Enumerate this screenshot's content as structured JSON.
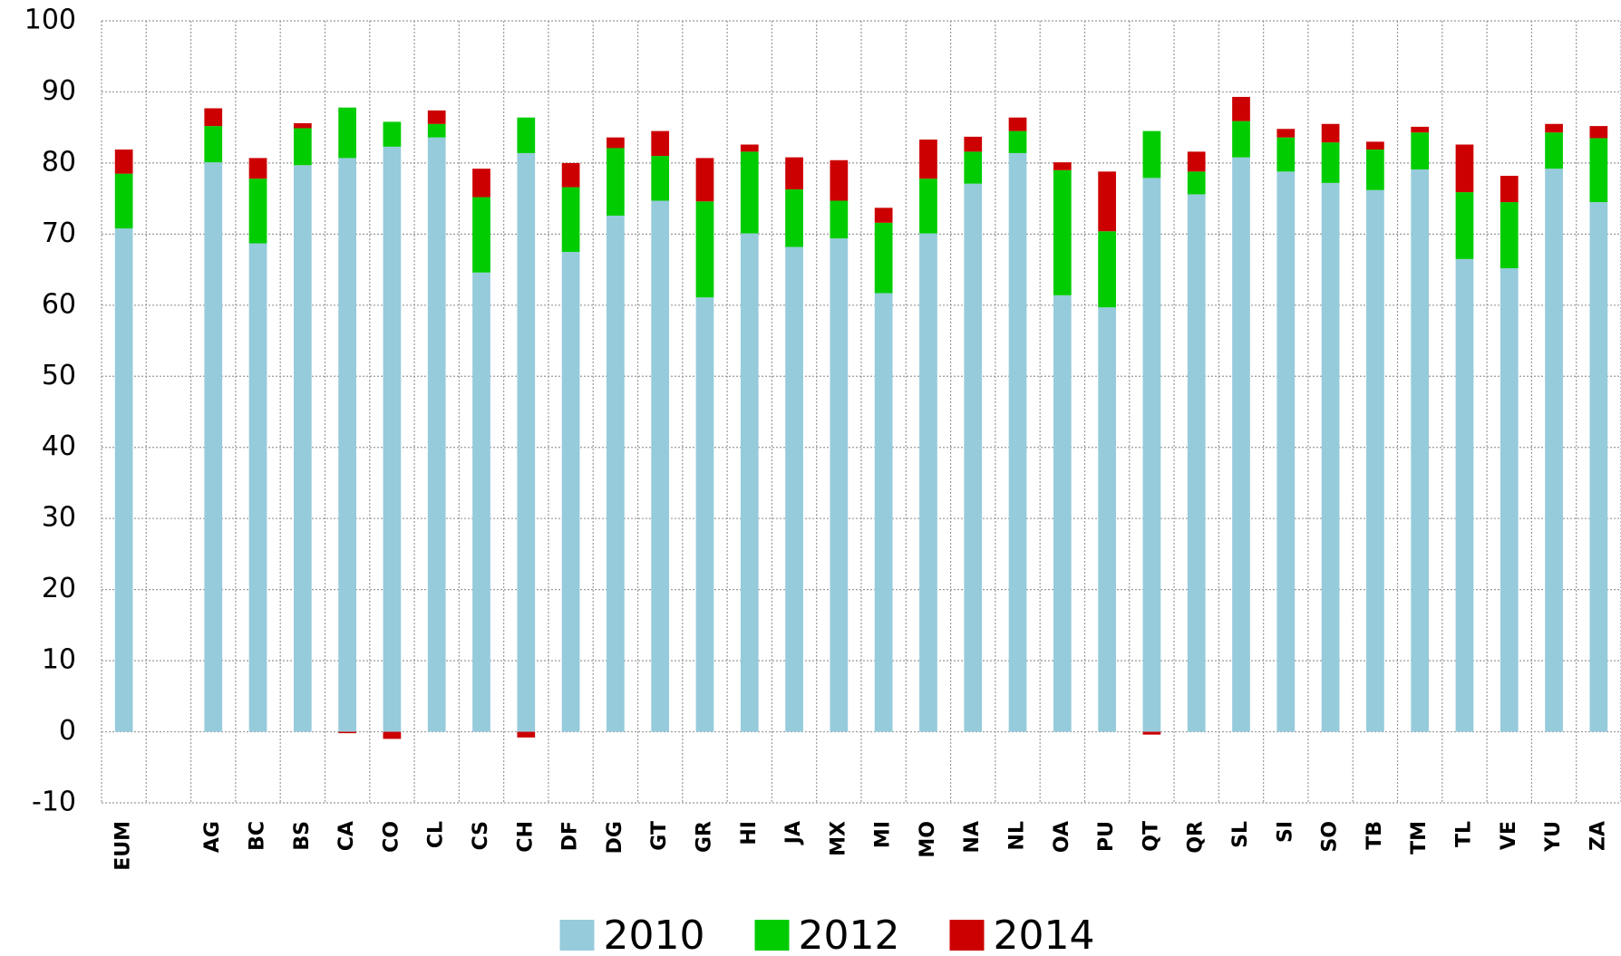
{
  "chart_data": {
    "type": "stacked_bar",
    "categories": [
      "EUM",
      null,
      "AG",
      "BC",
      "BS",
      "CA",
      "CO",
      "CL",
      "CS",
      "CH",
      "DF",
      "DG",
      "GT",
      "GR",
      "HI",
      "JA",
      "MX",
      "MI",
      "MO",
      "NA",
      "NL",
      "OA",
      "PU",
      "QT",
      "QR",
      "SL",
      "SI",
      "SO",
      "TB",
      "TM",
      "TL",
      "VE",
      "YU",
      "ZA"
    ],
    "series": [
      {
        "name": "2010",
        "color": "#96cbdb",
        "values": [
          70.8,
          null,
          80.1,
          68.7,
          79.7,
          80.7,
          82.3,
          83.6,
          64.6,
          81.4,
          67.5,
          72.6,
          74.7,
          61.1,
          70.1,
          68.2,
          69.4,
          61.7,
          70.1,
          77.1,
          81.4,
          61.4,
          59.7,
          77.9,
          75.6,
          80.8,
          78.8,
          77.2,
          76.2,
          79.1,
          66.5,
          65.2,
          79.2,
          74.5
        ]
      },
      {
        "name": "2012",
        "color": "#00cc00",
        "values": [
          7.7,
          null,
          5.1,
          9.1,
          5.2,
          7.1,
          3.5,
          1.9,
          10.6,
          5.0,
          9.1,
          9.5,
          6.3,
          13.5,
          11.5,
          8.1,
          5.3,
          9.9,
          7.7,
          4.5,
          3.1,
          17.6,
          10.7,
          6.6,
          3.2,
          5.1,
          4.8,
          5.7,
          5.7,
          5.2,
          9.4,
          9.3,
          5.1,
          9.0
        ]
      },
      {
        "name": "2014",
        "color": "#cc0000",
        "values": [
          3.4,
          null,
          2.5,
          2.9,
          0.7,
          -0.2,
          -1.0,
          1.9,
          4.0,
          -0.8,
          3.4,
          1.5,
          3.5,
          6.1,
          1.0,
          4.5,
          5.7,
          2.1,
          5.5,
          2.1,
          1.9,
          1.1,
          8.4,
          -0.4,
          2.8,
          3.4,
          1.2,
          2.6,
          1.1,
          0.8,
          6.7,
          3.7,
          1.2,
          1.7
        ]
      }
    ],
    "ylim": [
      -10,
      100
    ],
    "yticks": [
      -10,
      0,
      10,
      20,
      30,
      40,
      50,
      60,
      70,
      80,
      90,
      100
    ],
    "grid": true,
    "legend": "bottom"
  }
}
